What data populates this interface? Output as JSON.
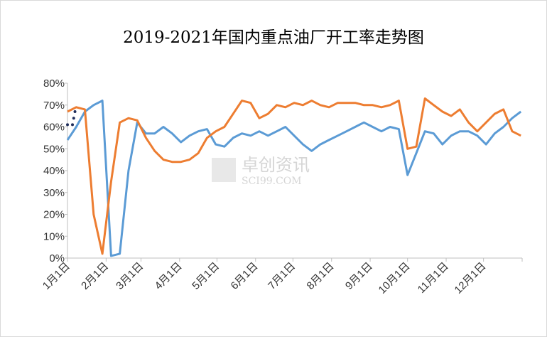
{
  "chart_data": {
    "type": "line",
    "title": "2019-2021年国内重点油厂开工率走势图",
    "watermark": [
      "卓创资讯",
      "SCI99.COM"
    ],
    "x": [
      0,
      7,
      14,
      21,
      28,
      35,
      42,
      49,
      56,
      63,
      70,
      77,
      84,
      91,
      98,
      105,
      112,
      119,
      126,
      133,
      140,
      147,
      154,
      161,
      168,
      175,
      182,
      189,
      196,
      203,
      210,
      217,
      224,
      231,
      238,
      245,
      252,
      259,
      266,
      273,
      280,
      287,
      294,
      301,
      308,
      315,
      322,
      329,
      336,
      343,
      350,
      357,
      364
    ],
    "xlim": [
      0,
      365
    ],
    "xticks": [
      {
        "value": 0,
        "label": "1月1日"
      },
      {
        "value": 31,
        "label": "2月1日"
      },
      {
        "value": 59,
        "label": "3月1日"
      },
      {
        "value": 90,
        "label": "4月1日"
      },
      {
        "value": 120,
        "label": "5月1日"
      },
      {
        "value": 151,
        "label": "6月1日"
      },
      {
        "value": 181,
        "label": "7月1日"
      },
      {
        "value": 212,
        "label": "8月1日"
      },
      {
        "value": 243,
        "label": "9月1日"
      },
      {
        "value": 273,
        "label": "10月1日"
      },
      {
        "value": 304,
        "label": "11月1日"
      },
      {
        "value": 334,
        "label": "12月1日"
      }
    ],
    "ylim": [
      0,
      80
    ],
    "yticks": [
      {
        "value": 0,
        "label": "0%"
      },
      {
        "value": 10,
        "label": "10%"
      },
      {
        "value": 20,
        "label": "20%"
      },
      {
        "value": 30,
        "label": "30%"
      },
      {
        "value": 40,
        "label": "40%"
      },
      {
        "value": 50,
        "label": "50%"
      },
      {
        "value": 60,
        "label": "60%"
      },
      {
        "value": 70,
        "label": "70%"
      },
      {
        "value": 80,
        "label": "80%"
      }
    ],
    "grid": false,
    "series": [
      {
        "color": "#5b9bd5",
        "values": [
          54,
          60,
          67,
          70,
          72,
          1,
          2,
          40,
          62,
          57,
          57,
          60,
          57,
          53,
          56,
          58,
          59,
          52,
          51,
          55,
          57,
          56,
          58,
          56,
          58,
          60,
          56,
          52,
          49,
          52,
          54,
          56,
          58,
          60,
          62,
          60,
          58,
          60,
          59,
          38,
          48,
          58,
          57,
          52,
          56,
          58,
          58,
          56,
          52,
          57,
          60,
          64,
          67
        ]
      },
      {
        "color": "#ed7d31",
        "values": [
          67,
          69,
          68,
          20,
          2,
          35,
          62,
          64,
          63,
          55,
          49,
          45,
          44,
          44,
          45,
          48,
          55,
          58,
          60,
          66,
          72,
          71,
          64,
          66,
          70,
          69,
          71,
          70,
          72,
          70,
          69,
          71,
          71,
          71,
          70,
          70,
          69,
          70,
          72,
          50,
          51,
          73,
          70,
          67,
          65,
          68,
          62,
          58,
          62,
          66,
          68,
          58,
          56
        ]
      },
      {
        "color": "#1f2d5a",
        "type": "scatter",
        "x": [
          0,
          4,
          5,
          6
        ],
        "values": [
          61,
          61,
          64,
          67
        ]
      }
    ]
  }
}
